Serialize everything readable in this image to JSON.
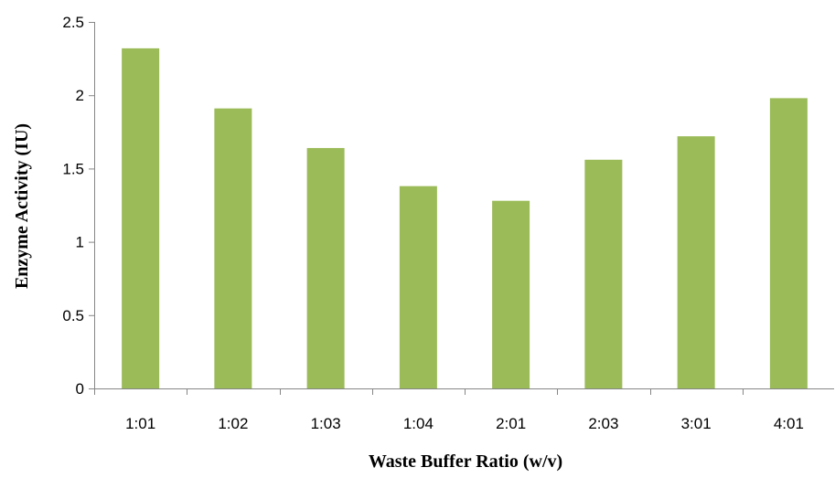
{
  "chart_data": {
    "type": "bar",
    "title": "",
    "xlabel": "Waste Buffer Ratio (w/v)",
    "ylabel": "Enzyme Activity (IU)",
    "categories": [
      "1:01",
      "1:02",
      "1:03",
      "1:04",
      "2:01",
      "2:03",
      "3:01",
      "4:01"
    ],
    "values": [
      2.32,
      1.91,
      1.64,
      1.38,
      1.28,
      1.56,
      1.72,
      1.98
    ],
    "ylim": [
      0,
      2.5
    ],
    "yticks": [
      "0",
      "0.5",
      "1",
      "1.5",
      "2",
      "2.5"
    ],
    "grid": false,
    "legend": "none",
    "bar_color": "#9BBB59"
  }
}
